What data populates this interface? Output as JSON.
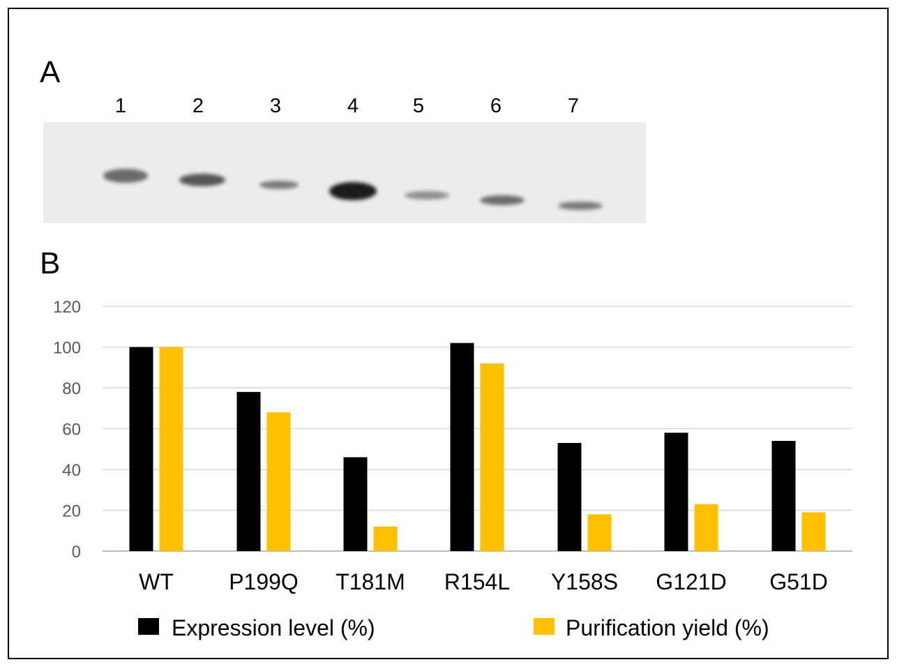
{
  "figure": {
    "panel_a_label": "A",
    "panel_b_label": "B"
  },
  "blot": {
    "lanes": [
      "1",
      "2",
      "3",
      "4",
      "5",
      "6",
      "7"
    ],
    "band_intensity": [
      0.62,
      0.72,
      0.55,
      1.0,
      0.45,
      0.62,
      0.55
    ],
    "band_color": "#1a1a1a",
    "background_color": "#ececec"
  },
  "chart_data": {
    "type": "bar",
    "title": "",
    "xlabel": "",
    "ylabel": "",
    "ylim": [
      0,
      120
    ],
    "yticks": [
      0,
      20,
      40,
      60,
      80,
      100,
      120
    ],
    "grid": true,
    "categories": [
      "WT",
      "P199Q",
      "T181M",
      "R154L",
      "Y158S",
      "G121D",
      "G51D"
    ],
    "series": [
      {
        "name": "Expression level (%)",
        "color": "#000000",
        "values": [
          100,
          78,
          46,
          102,
          53,
          58,
          54
        ]
      },
      {
        "name": "Purification yield (%)",
        "color": "#ffc000",
        "values": [
          100,
          68,
          12,
          92,
          18,
          23,
          19
        ]
      }
    ],
    "legend_position": "bottom"
  }
}
